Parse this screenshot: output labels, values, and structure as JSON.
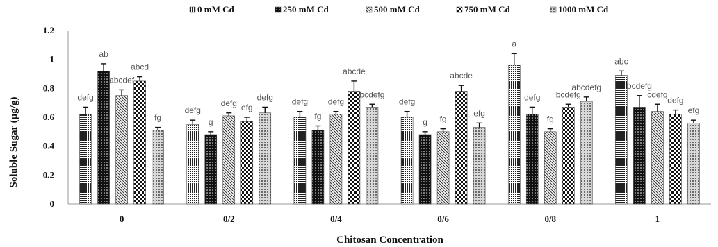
{
  "chart_data": {
    "type": "bar",
    "title": "",
    "xlabel": "Chitosan Concentration",
    "ylabel": "Soluble Sugar (µg/g)",
    "ylim": [
      0,
      1.2
    ],
    "yticks": [
      "0",
      "0.2",
      "0.4",
      "0.6",
      "0.8",
      "1",
      "1.2"
    ],
    "categories": [
      "0",
      "0/2",
      "0/4",
      "0/6",
      "0/8",
      "1"
    ],
    "legend_position": "top",
    "series": [
      {
        "name": "0 mM Cd",
        "pattern": "dense-dots",
        "values": [
          0.62,
          0.55,
          0.6,
          0.6,
          0.96,
          0.89
        ],
        "errors": [
          0.05,
          0.03,
          0.04,
          0.04,
          0.08,
          0.03
        ],
        "labels": [
          "defg",
          "defg",
          "defg",
          "defg",
          "a",
          "abc"
        ]
      },
      {
        "name": "250 mM Cd",
        "pattern": "black-dots",
        "values": [
          0.92,
          0.48,
          0.51,
          0.48,
          0.62,
          0.67
        ],
        "errors": [
          0.05,
          0.02,
          0.03,
          0.02,
          0.05,
          0.08
        ],
        "labels": [
          "ab",
          "g",
          "fg",
          "g",
          "defg",
          "bcdefg"
        ]
      },
      {
        "name": "500 mM Cd",
        "pattern": "diagonal",
        "values": [
          0.75,
          0.61,
          0.62,
          0.5,
          0.5,
          0.64
        ],
        "errors": [
          0.04,
          0.02,
          0.02,
          0.02,
          0.02,
          0.05
        ],
        "labels": [
          "abcdef",
          "defg",
          "defg",
          "fg",
          "fg",
          "cdefg"
        ]
      },
      {
        "name": "750 mM Cd",
        "pattern": "checker",
        "values": [
          0.85,
          0.57,
          0.78,
          0.78,
          0.67,
          0.62
        ],
        "errors": [
          0.03,
          0.03,
          0.07,
          0.04,
          0.02,
          0.03
        ],
        "labels": [
          "abcd",
          "efg",
          "abcde",
          "abcde",
          "bcdefg",
          "defg"
        ]
      },
      {
        "name": "1000 mM Cd",
        "pattern": "grid-dots",
        "values": [
          0.51,
          0.63,
          0.67,
          0.53,
          0.71,
          0.56
        ],
        "errors": [
          0.02,
          0.04,
          0.02,
          0.03,
          0.03,
          0.02
        ],
        "labels": [
          "fg",
          "defg",
          "bcdefg",
          "efg",
          "abcdefg",
          "efg"
        ]
      }
    ]
  }
}
